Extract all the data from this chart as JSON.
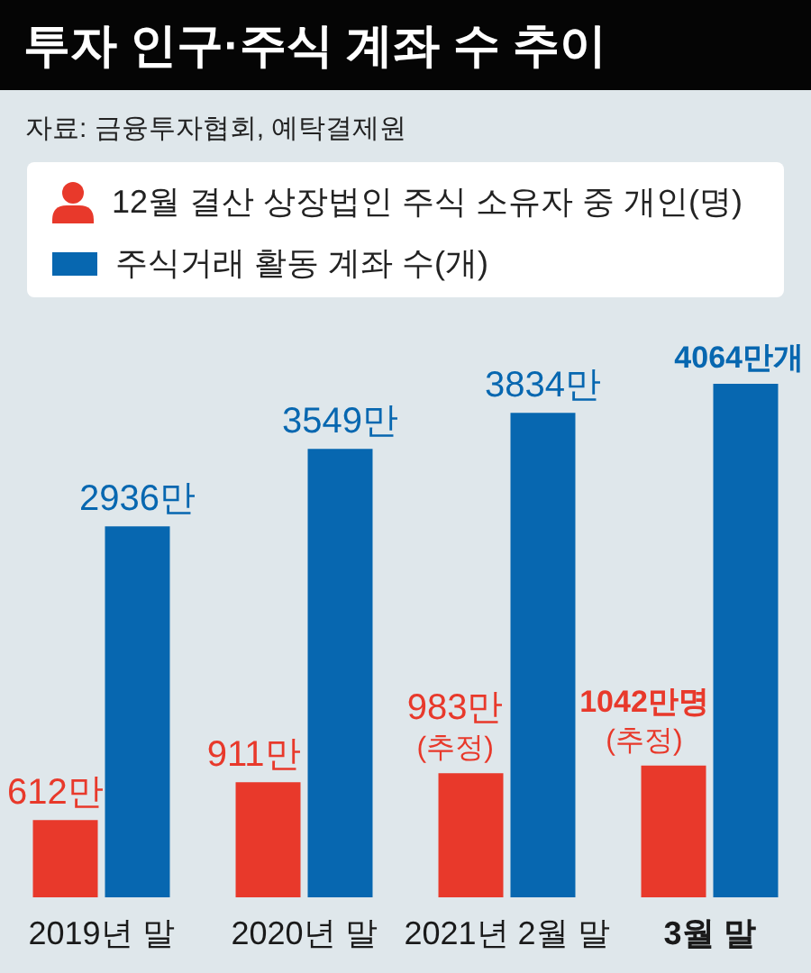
{
  "chart_data": {
    "type": "bar",
    "title": "투자 인구·주식 계좌 수 추이",
    "annotations": [
      "자료: 금융투자협회, 예탁결제원"
    ],
    "categories": [
      "2019년 말",
      "2020년 말",
      "2021년 2월 말",
      "3월 말"
    ],
    "series": [
      {
        "name": "12월 결산 상장법인 주식 소유자 중 개인(명)",
        "color": "#e8392b",
        "values": [
          612,
          911,
          983,
          1042
        ],
        "value_labels": [
          "612만",
          "911만",
          "983만\n(추정)",
          "1042만명\n(추정)"
        ]
      },
      {
        "name": "주식거래 활동 계좌 수(개)",
        "color": "#0767b0",
        "values": [
          2936,
          3549,
          3834,
          4064
        ],
        "value_labels": [
          "2936만",
          "3549만",
          "3834만",
          "4064만개"
        ]
      }
    ],
    "legend": "top",
    "tick_labels": "x"
  }
}
